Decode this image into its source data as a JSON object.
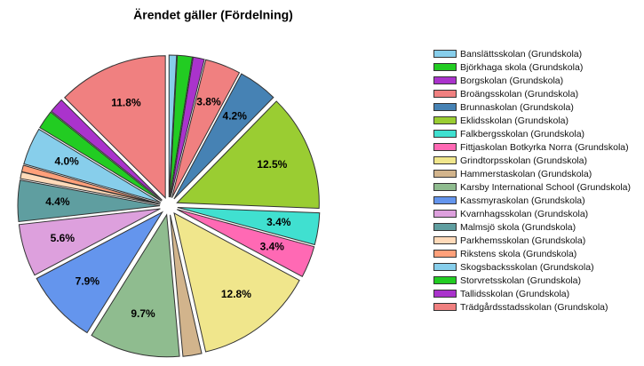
{
  "chart_data": {
    "type": "pie",
    "title": "Ärendet gäller (Fördelning)",
    "categories": [
      "Banslättsskolan (Grundskola)",
      "Björkhaga skola (Grundskola)",
      "Borgskolan (Grundskola)",
      "Broängsskolan (Grundskola)",
      "Brunnaskolan (Grundskola)",
      "Eklidsskolan (Grundskola)",
      "Falkbergsskolan (Grundskola)",
      "Fittjaskolan Botkyrka Norra (Grundskola)",
      "Grindtorpsskolan (Grundskola)",
      "Hammerstaskolan (Grundskola)",
      "Karsby International School (Grundskola)",
      "Kassmyraskolan (Grundskola)",
      "Kvarnhagsskolan (Grundskola)",
      "Malmsjö skola (Grundskola)",
      "Parkhemsskolan (Grundskola)",
      "Rikstens skola (Grundskola)",
      "Skogsbacksskolan (Grundskola)",
      "Storvretsskolan (Grundskola)",
      "Tallidsskolan (Grundskola)",
      "Trädgårdsstadsskolan (Grundskola)"
    ],
    "values": [
      0.8,
      1.6,
      1.2,
      3.8,
      4.2,
      12.5,
      3.4,
      3.4,
      12.8,
      2.0,
      9.7,
      7.9,
      5.6,
      4.4,
      0.7,
      0.7,
      4.0,
      2.0,
      1.6,
      11.8
    ],
    "value_labels": [
      null,
      null,
      null,
      "3.8%",
      "4.2%",
      "12.5%",
      "3.4%",
      "3.4%",
      "12.8%",
      null,
      "9.7%",
      "7.9%",
      "5.6%",
      "4.4%",
      null,
      null,
      "4.0%",
      null,
      null,
      "11.8%"
    ],
    "colors": [
      "#87ceeb",
      "#22cc22",
      "#aa33cc",
      "#f08080",
      "#4682b4",
      "#9acd32",
      "#40e0d0",
      "#ff69b4",
      "#f0e68c",
      "#d2b48c",
      "#8fbc8f",
      "#6495ed",
      "#dda0dd",
      "#5f9ea0",
      "#ffdab9",
      "#ffa07a",
      "#87ceeb",
      "#22cc22",
      "#aa33cc",
      "#f08080"
    ]
  }
}
